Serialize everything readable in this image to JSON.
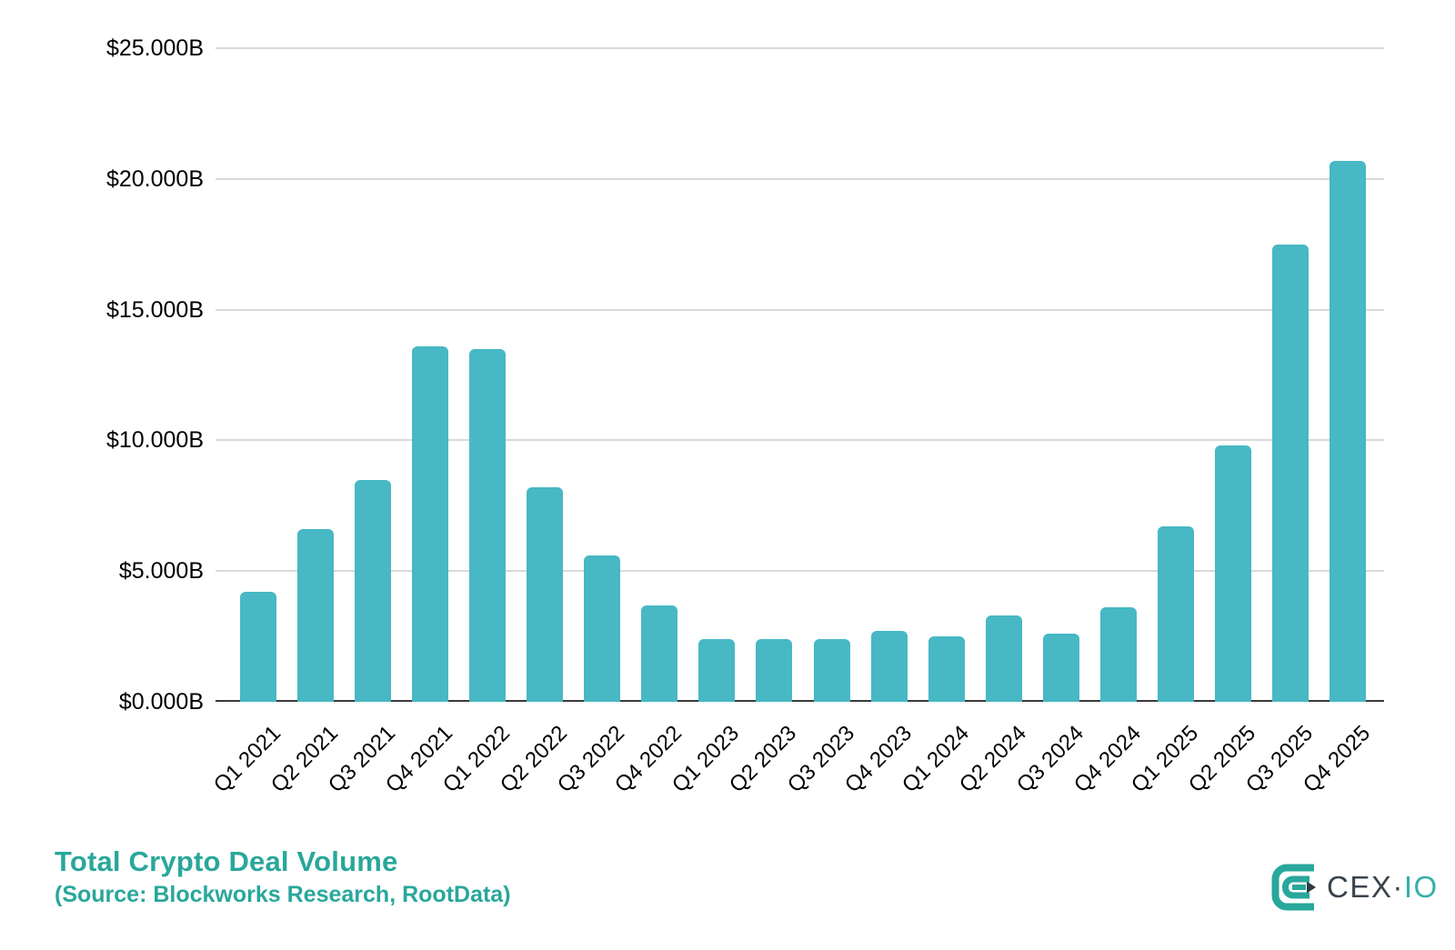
{
  "chart_data": {
    "type": "bar",
    "title": "Total Crypto Deal Volume",
    "subtitle": "(Source: Blockworks Research, RootData)",
    "categories": [
      "Q1 2021",
      "Q2 2021",
      "Q3 2021",
      "Q4 2021",
      "Q1 2022",
      "Q2 2022",
      "Q3 2022",
      "Q4 2022",
      "Q1 2023",
      "Q2 2023",
      "Q3 2023",
      "Q4 2023",
      "Q1 2024",
      "Q2 2024",
      "Q3 2024",
      "Q4 2024",
      "Q1 2025",
      "Q2 2025",
      "Q3 2025",
      "Q4 2025"
    ],
    "values": [
      4.2,
      6.6,
      8.5,
      13.6,
      13.5,
      8.2,
      5.6,
      3.7,
      2.4,
      2.4,
      2.4,
      2.7,
      2.5,
      3.3,
      2.6,
      3.6,
      6.7,
      9.8,
      17.5,
      20.7
    ],
    "unit": "USD billions",
    "xlabel": "",
    "ylabel": "",
    "ylim": [
      0,
      25
    ],
    "ytick_interval": 5,
    "ytick_labels": [
      "$0.000B",
      "$5.000B",
      "$10.000B",
      "$15.000B",
      "$20.000B",
      "$25.000B"
    ],
    "grid": true,
    "legend": "none"
  },
  "colors": {
    "bar": "#47b8c4",
    "accent_teal": "#29a79b",
    "gridline": "#d9d9d9",
    "axis_line": "#3a3a3a",
    "tick_text": "#000000",
    "logo_dark": "#39444e",
    "logo_teal": "#35b0aa"
  },
  "branding": {
    "logo_cex": "CEX",
    "logo_dot": "·",
    "logo_io": "IO",
    "logo_icon": "cexio-mark-icon"
  }
}
